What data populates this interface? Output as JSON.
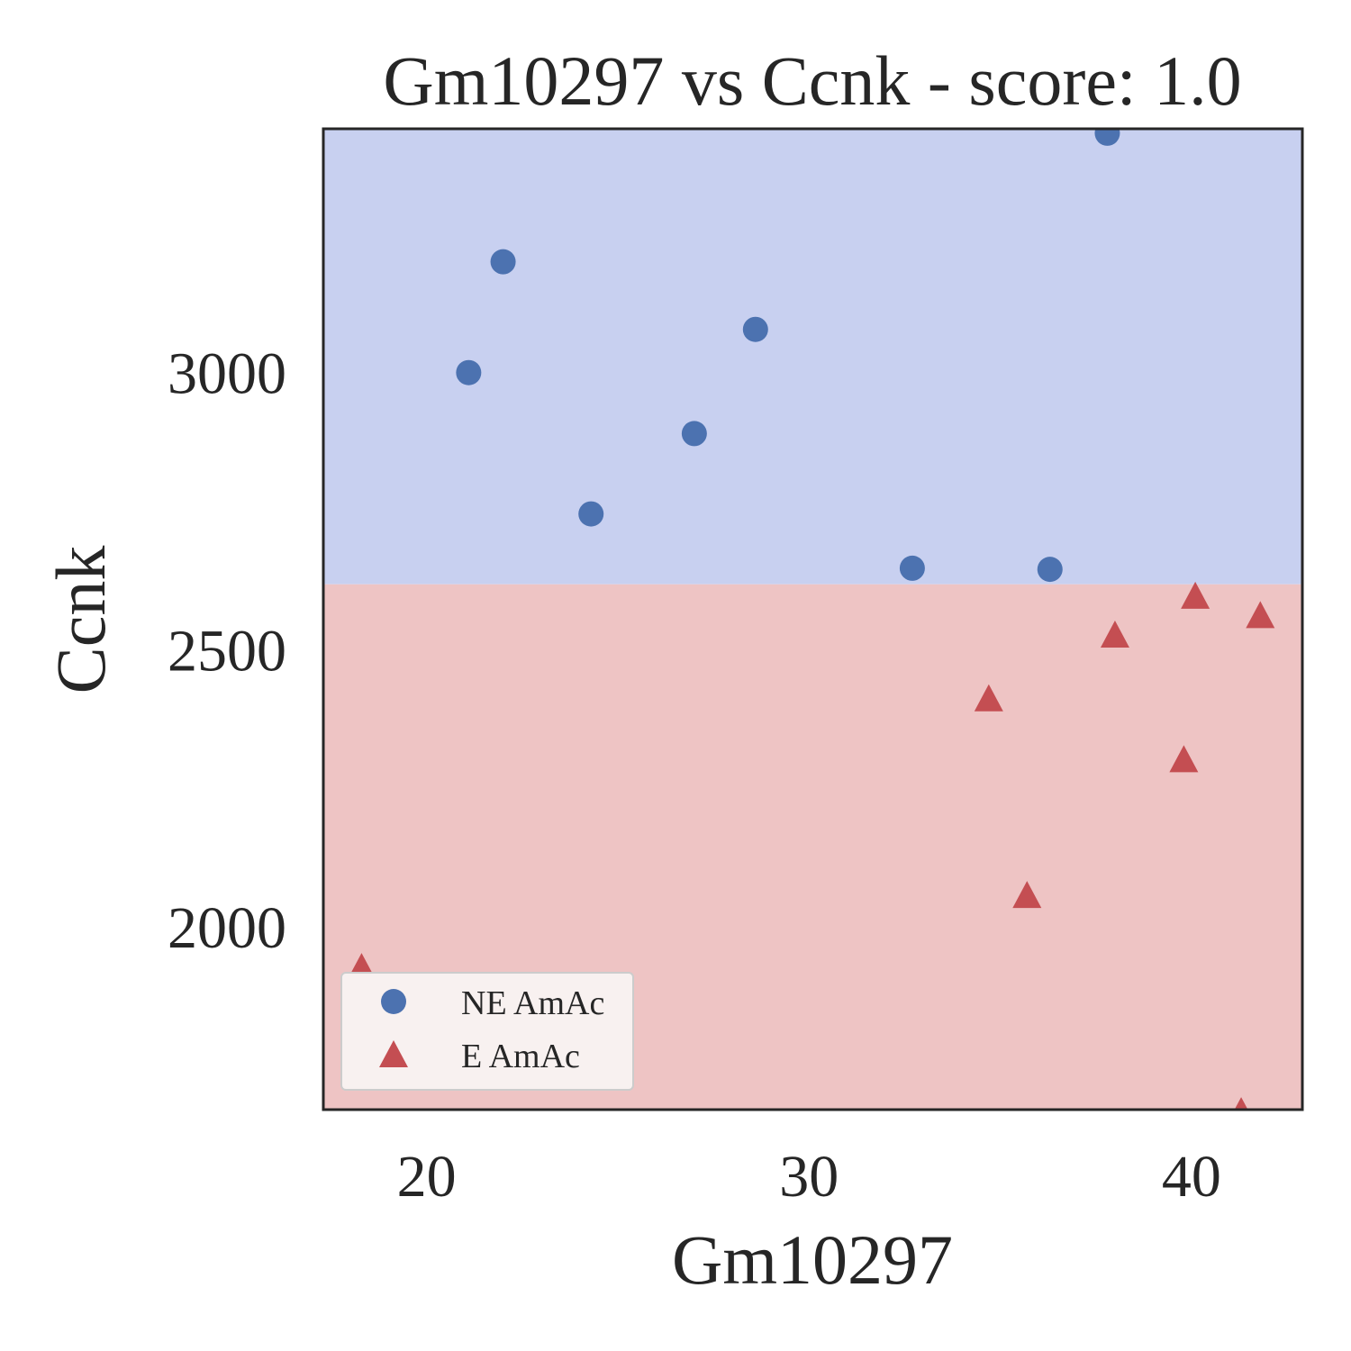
{
  "chart_data": {
    "type": "scatter",
    "title": "Gm10297 vs Ccnk - score: 1.0",
    "xlabel": "Gm10297",
    "ylabel": "Ccnk",
    "xlim": [
      17.3,
      42.9
    ],
    "ylim": [
      1670,
      3440
    ],
    "x_ticks": [
      20,
      30,
      40
    ],
    "y_ticks": [
      2000,
      2500,
      3000
    ],
    "x_tick_labels": [
      "20",
      "30",
      "40"
    ],
    "y_tick_labels": [
      "2000",
      "2500",
      "3000"
    ],
    "grid": false,
    "legend_position": "bottom-left",
    "decision_boundary_y": 2618,
    "regions": [
      {
        "side": "above",
        "color": "#c8d0f0"
      },
      {
        "side": "below",
        "color": "#eec4c4"
      }
    ],
    "series": [
      {
        "name": "NE AmAc",
        "marker": "circle",
        "color": "#4c72b0",
        "points": [
          {
            "x": 21.1,
            "y": 3000
          },
          {
            "x": 22.0,
            "y": 3200
          },
          {
            "x": 24.3,
            "y": 2745
          },
          {
            "x": 27.0,
            "y": 2890
          },
          {
            "x": 28.6,
            "y": 3078
          },
          {
            "x": 32.7,
            "y": 2647
          },
          {
            "x": 36.3,
            "y": 2645
          },
          {
            "x": 37.8,
            "y": 3432
          }
        ]
      },
      {
        "name": "E AmAc",
        "marker": "triangle",
        "color": "#c44e52",
        "points": [
          {
            "x": 18.3,
            "y": 1925
          },
          {
            "x": 34.7,
            "y": 2410
          },
          {
            "x": 35.7,
            "y": 2055
          },
          {
            "x": 38.0,
            "y": 2525
          },
          {
            "x": 39.8,
            "y": 2300
          },
          {
            "x": 40.1,
            "y": 2595
          },
          {
            "x": 41.3,
            "y": 1665
          },
          {
            "x": 41.8,
            "y": 2560
          }
        ]
      }
    ]
  }
}
